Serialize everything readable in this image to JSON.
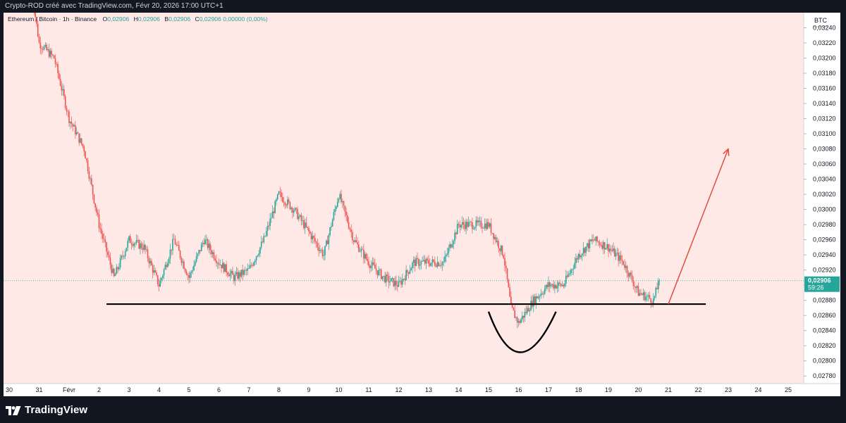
{
  "header": {
    "text": "Crypto-ROD créé avec TradingView.com, Févr 20, 2026 17:00 UTC+1"
  },
  "legend": {
    "symbol": "Ethereum / Bitcoin · 1h · Binance",
    "o_label": "O",
    "o_value": "0,02906",
    "h_label": "H",
    "h_value": "0,02906",
    "b_label": "B",
    "b_value": "0,02906",
    "c_label": "C",
    "c_value": "0,02906 0,00000 (0,00%)"
  },
  "price_axis": {
    "currency": "BTC"
  },
  "last_price": {
    "value": "0,02906",
    "countdown": "59:26"
  },
  "footer": {
    "brand": "TradingView"
  },
  "colors": {
    "background": "#ffe9e6",
    "up": "#26a69a",
    "down": "#ef5350",
    "trend_arrow": "#e24d42",
    "support_line": "#000000",
    "last_price_badge": "#26a69a",
    "frame": "#131722"
  },
  "chart_data": {
    "type": "candlestick",
    "pair": "ETH/BTC",
    "interval": "1h",
    "exchange": "Binance",
    "ylim": [
      0.0277,
      0.0326
    ],
    "y_ticks": [
      "0,02780",
      "0,02800",
      "0,02820",
      "0,02840",
      "0,02860",
      "0,02880",
      "0,02900",
      "0,02920",
      "0,02940",
      "0,02960",
      "0,02980",
      "0,03000",
      "0,03020",
      "0,03040",
      "0,03060",
      "0,03080",
      "0,03100",
      "0,03120",
      "0,03140",
      "0,03160",
      "0,03180",
      "0,03200",
      "0,03220",
      "0,03240"
    ],
    "x_ticks": [
      "30",
      "31",
      "Févr",
      "2",
      "3",
      "4",
      "5",
      "6",
      "7",
      "8",
      "9",
      "10",
      "11",
      "12",
      "13",
      "14",
      "15",
      "16",
      "17",
      "18",
      "19",
      "20",
      "21",
      "22",
      "23",
      "24",
      "25"
    ],
    "price_path": [
      {
        "date": "2026-01-30T18:00",
        "price": 0.0329
      },
      {
        "date": "2026-01-31T00:00",
        "price": 0.0322
      },
      {
        "date": "2026-01-31T12:00",
        "price": 0.032
      },
      {
        "date": "2026-02-01T00:00",
        "price": 0.0312
      },
      {
        "date": "2026-02-01T12:00",
        "price": 0.0308
      },
      {
        "date": "2026-02-02T00:00",
        "price": 0.0298
      },
      {
        "date": "2026-02-02T12:00",
        "price": 0.0291
      },
      {
        "date": "2026-02-03T00:00",
        "price": 0.0296
      },
      {
        "date": "2026-02-03T12:00",
        "price": 0.0295
      },
      {
        "date": "2026-02-04T00:00",
        "price": 0.029
      },
      {
        "date": "2026-02-04T12:00",
        "price": 0.0296
      },
      {
        "date": "2026-02-05T00:00",
        "price": 0.0291
      },
      {
        "date": "2026-02-05T12:00",
        "price": 0.0296
      },
      {
        "date": "2026-02-06T00:00",
        "price": 0.0293
      },
      {
        "date": "2026-02-06T12:00",
        "price": 0.0291
      },
      {
        "date": "2026-02-07T00:00",
        "price": 0.0292
      },
      {
        "date": "2026-02-07T12:00",
        "price": 0.0296
      },
      {
        "date": "2026-02-08T00:00",
        "price": 0.0302
      },
      {
        "date": "2026-02-08T12:00",
        "price": 0.03
      },
      {
        "date": "2026-02-09T00:00",
        "price": 0.0297
      },
      {
        "date": "2026-02-09T12:00",
        "price": 0.0294
      },
      {
        "date": "2026-02-10T00:00",
        "price": 0.0302
      },
      {
        "date": "2026-02-10T12:00",
        "price": 0.0296
      },
      {
        "date": "2026-02-11T00:00",
        "price": 0.0293
      },
      {
        "date": "2026-02-11T12:00",
        "price": 0.0291
      },
      {
        "date": "2026-02-12T00:00",
        "price": 0.029
      },
      {
        "date": "2026-02-12T12:00",
        "price": 0.0293
      },
      {
        "date": "2026-02-13T00:00",
        "price": 0.0293
      },
      {
        "date": "2026-02-13T12:00",
        "price": 0.0293
      },
      {
        "date": "2026-02-14T00:00",
        "price": 0.0298
      },
      {
        "date": "2026-02-14T12:00",
        "price": 0.0298
      },
      {
        "date": "2026-02-15T00:00",
        "price": 0.0298
      },
      {
        "date": "2026-02-15T12:00",
        "price": 0.0294
      },
      {
        "date": "2026-02-15T18:00",
        "price": 0.0287
      },
      {
        "date": "2026-02-16T00:00",
        "price": 0.0285
      },
      {
        "date": "2026-02-16T12:00",
        "price": 0.0288
      },
      {
        "date": "2026-02-17T00:00",
        "price": 0.029
      },
      {
        "date": "2026-02-17T12:00",
        "price": 0.029
      },
      {
        "date": "2026-02-18T00:00",
        "price": 0.0294
      },
      {
        "date": "2026-02-18T12:00",
        "price": 0.0296
      },
      {
        "date": "2026-02-19T00:00",
        "price": 0.0295
      },
      {
        "date": "2026-02-19T12:00",
        "price": 0.0293
      },
      {
        "date": "2026-02-20T00:00",
        "price": 0.0289
      },
      {
        "date": "2026-02-20T12:00",
        "price": 0.0288
      },
      {
        "date": "2026-02-20T17:00",
        "price": 0.02906
      }
    ],
    "support_line": {
      "start_date": "2026-02-02T06:00",
      "end_date": "2026-02-22T06:00",
      "price": 0.02875
    },
    "arrow": {
      "start_date": "2026-02-21T00:00",
      "start_price": 0.02875,
      "end_date": "2026-02-23T00:00",
      "end_price": 0.0308
    },
    "curve": {
      "start_date": "2026-02-15T00:00",
      "bottom_date": "2026-02-16T00:00",
      "end_date": "2026-02-17T06:00",
      "top_price": 0.02865,
      "bottom_price": 0.0281
    }
  }
}
